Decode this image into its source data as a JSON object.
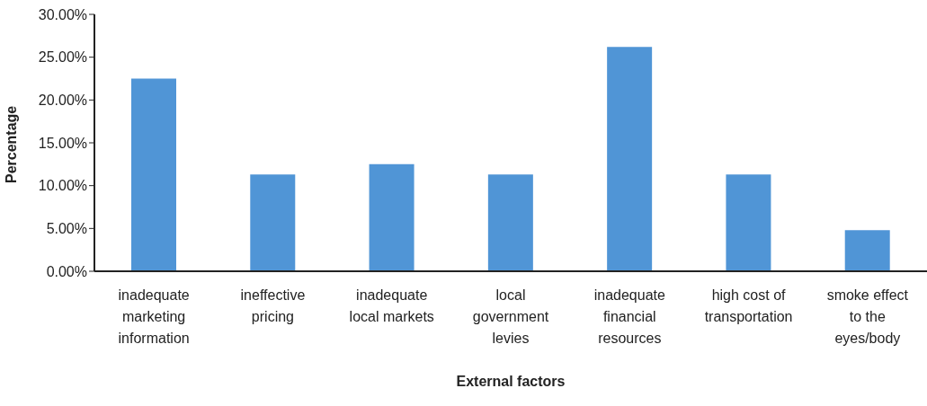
{
  "chart_data": {
    "type": "bar",
    "xlabel": "External factors",
    "ylabel": "Percentage",
    "categories": [
      "inadequate marketing information",
      "ineffective pricing",
      "inadequate local markets",
      "local government levies",
      "inadequate financial resources",
      "high cost of transportation",
      "smoke effect to the eyes/body"
    ],
    "values": [
      22.5,
      11.3,
      12.5,
      11.3,
      26.2,
      11.3,
      4.8
    ],
    "color": "#5095d6",
    "ylim": [
      0,
      30
    ],
    "yticks": [
      {
        "value": 0,
        "label": "0.00%"
      },
      {
        "value": 5,
        "label": "5.00%"
      },
      {
        "value": 10,
        "label": "10.00%"
      },
      {
        "value": 15,
        "label": "15.00%"
      },
      {
        "value": 20,
        "label": "20.00%"
      },
      {
        "value": 25,
        "label": "25.00%"
      },
      {
        "value": 30,
        "label": "30.00%"
      }
    ],
    "grid": false,
    "legend": false
  }
}
